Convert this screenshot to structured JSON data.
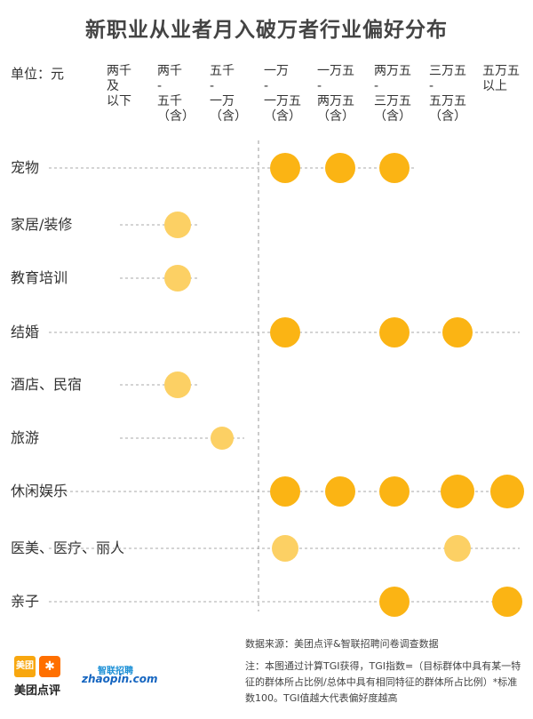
{
  "page": {
    "title": "新职业从业者月入破万者行业偏好分布",
    "unit_label": "单位：元",
    "source": "数据来源：美团点评&智联招聘问卷调查数据",
    "note": "注：本图通过计算TGI获得，TGI指数=（目标群体中具有某一特征的群体所占比例/总体中具有相同特征的群体所占比例）*标准数100。TGI值越大代表偏好度越高",
    "logos": {
      "meituan_badge": "美团",
      "meituan_text": "美团点评",
      "zhilian_top": "智联招聘",
      "zhilian_bottom": "zhaopin.com"
    }
  },
  "colors": {
    "dot_strong": "#fbb414",
    "dot_light": "#fcd064",
    "guide_line": "#aaaaaa",
    "axis_line": "#999999"
  },
  "chart_data": {
    "type": "scatter",
    "title": "新职业从业者月入破万者行业偏好分布",
    "unit": "单位：元",
    "categories_x": [
      [
        "两千",
        "及",
        "以下"
      ],
      [
        "两千",
        "-",
        "五千",
        "（含）"
      ],
      [
        "五千",
        "-",
        "一万",
        "（含）"
      ],
      [
        "一万",
        "-",
        "一万五",
        "（含）"
      ],
      [
        "一万五",
        "-",
        "两万五",
        "（含）"
      ],
      [
        "两万五",
        "-",
        "三万五",
        "（含）"
      ],
      [
        "三万五",
        "-",
        "五万五",
        "（含）"
      ],
      [
        "五万五",
        "以上"
      ]
    ],
    "categories_y": [
      "宠物",
      "家居/装修",
      "教育培训",
      "结婚",
      "酒店、民宿",
      "旅游",
      "休闲娱乐",
      "医美、医疗、丽人",
      "亲子"
    ],
    "reference_x_index": 3,
    "points": [
      {
        "row": 0,
        "col": 3,
        "size": 3
      },
      {
        "row": 0,
        "col": 4,
        "size": 3
      },
      {
        "row": 0,
        "col": 5,
        "size": 3
      },
      {
        "row": 1,
        "col": 1,
        "size": 2
      },
      {
        "row": 2,
        "col": 1,
        "size": 2
      },
      {
        "row": 3,
        "col": 3,
        "size": 3
      },
      {
        "row": 3,
        "col": 5,
        "size": 3
      },
      {
        "row": 3,
        "col": 6,
        "size": 3
      },
      {
        "row": 4,
        "col": 1,
        "size": 2
      },
      {
        "row": 5,
        "col": 2,
        "size": 1
      },
      {
        "row": 6,
        "col": 3,
        "size": 3
      },
      {
        "row": 6,
        "col": 4,
        "size": 3
      },
      {
        "row": 6,
        "col": 5,
        "size": 3
      },
      {
        "row": 6,
        "col": 6,
        "size": 4
      },
      {
        "row": 6,
        "col": 7,
        "size": 4
      },
      {
        "row": 7,
        "col": 3,
        "size": 2
      },
      {
        "row": 7,
        "col": 6,
        "size": 2
      },
      {
        "row": 8,
        "col": 5,
        "size": 3
      },
      {
        "row": 8,
        "col": 7,
        "size": 3
      }
    ]
  }
}
